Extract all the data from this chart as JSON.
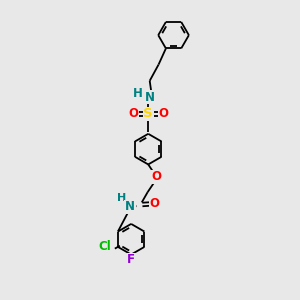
{
  "bg_color": "#e8e8e8",
  "bond_color": "#000000",
  "atom_colors": {
    "N": "#008080",
    "O": "#FF0000",
    "S": "#FFD700",
    "Cl": "#00BB00",
    "F": "#9400D3",
    "H": "#008080"
  },
  "lw": 1.3,
  "fs": 8.5,
  "r_ring": 0.52
}
